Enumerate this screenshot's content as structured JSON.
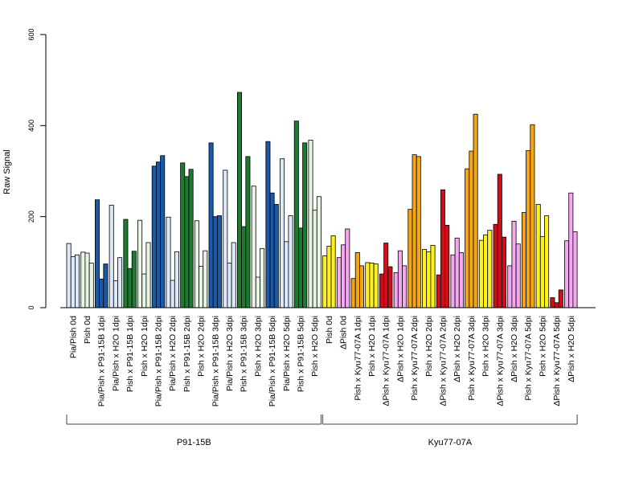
{
  "chart_data": {
    "type": "bar",
    "title": "",
    "xlabel": "",
    "ylabel": "Raw Signal",
    "ylim": [
      0,
      600
    ],
    "yticks": [
      0,
      200,
      400,
      600
    ],
    "categories": [
      "Pia/Pish 0d",
      "Pish 0d",
      "Pia/Pish x P91-15B 1dpi",
      "Pia/Pish x H2O 1dpi",
      "Pish x P91-15B 1dpi",
      "Pish x H2O 1dpi",
      "Pia/Pish x P91-15B 2dpi",
      "Pia/Pish x H2O 2dpi",
      "Pish x P91-15B 2dpi",
      "Pish x H2O 2dpi",
      "Pia/Pish x P91-15B 3dpi",
      "Pia/Pish x H2O 3dpi",
      "Pish x P91-15B 3dpi",
      "Pish x H2O 3dpi",
      "Pia/Pish x P91-15B 5dpi",
      "Pia/Pish x H2O 5dpi",
      "Pish x P91-15B 5dpi",
      "Pish x H2O 5dpi",
      "Pish 0d",
      "ΔPish 0d",
      "Pish x Kyu77-07A 1dpi",
      "Pish x H2O 1dpi",
      "ΔPish x Kyu77-07A 1dpi",
      "ΔPish x H2O 1dpi",
      "Pish x Kyu77-07A 2dpi",
      "Pish x H2O 2dpi",
      "ΔPish x Kyu77-07A 2dpi",
      "ΔPish x H2O 2dpi",
      "Pish x Kyu77-07A 3dpi",
      "Pish x H2O 3dpi",
      "ΔPish x Kyu77-07A 3dpi",
      "ΔPish x H2O 3dpi",
      "Pish x Kyu77-07A 5dpi",
      "Pish x H2O 5dpi",
      "ΔPish x Kyu77-07A 5dpi",
      "ΔPish x H2O 5dpi"
    ],
    "values": [
      [
        141,
        112,
        116
      ],
      [
        122,
        120,
        98
      ],
      [
        237,
        63,
        96
      ],
      [
        225,
        59,
        110
      ],
      [
        194,
        86,
        124
      ],
      [
        192,
        74,
        143
      ],
      [
        311,
        320,
        334
      ],
      [
        199,
        60,
        123
      ],
      [
        318,
        288,
        304
      ],
      [
        191,
        91,
        125
      ],
      [
        362,
        200,
        202
      ],
      [
        302,
        98,
        143
      ],
      [
        473,
        178,
        332
      ],
      [
        267,
        67,
        130
      ],
      [
        365,
        252,
        227
      ],
      [
        327,
        145,
        202
      ],
      [
        410,
        175,
        362
      ],
      [
        368,
        214,
        244
      ],
      [
        114,
        135,
        158
      ],
      [
        110,
        138,
        173
      ],
      [
        64,
        121,
        92
      ],
      [
        99,
        98,
        96
      ],
      [
        74,
        142,
        90
      ],
      [
        77,
        125,
        92
      ],
      [
        216,
        336,
        332
      ],
      [
        128,
        123,
        137
      ],
      [
        72,
        259,
        181
      ],
      [
        116,
        153,
        121
      ],
      [
        305,
        344,
        425
      ],
      [
        148,
        160,
        170
      ],
      [
        183,
        293,
        155
      ],
      [
        92,
        190,
        140
      ],
      [
        209,
        345,
        402
      ],
      [
        227,
        156,
        202
      ],
      [
        22,
        11,
        39
      ],
      [
        147,
        252,
        167
      ]
    ],
    "bar_colors": [
      "#dde8f8",
      "#e9f5e4",
      "#1a58a8",
      "#dde8f8",
      "#1e7a31",
      "#e9f5e4",
      "#1a58a8",
      "#dde8f8",
      "#1e7a31",
      "#e9f5e4",
      "#1a58a8",
      "#dde8f8",
      "#1e7a31",
      "#e9f5e4",
      "#1a58a8",
      "#dde8f8",
      "#1e7a31",
      "#e9f5e4",
      "#fff21c",
      "#f4a8ef",
      "#f5a614",
      "#fff21c",
      "#d10d1a",
      "#f4a8ef",
      "#f5a614",
      "#fff21c",
      "#d10d1a",
      "#f4a8ef",
      "#f5a614",
      "#fff21c",
      "#d10d1a",
      "#f4a8ef",
      "#f5a614",
      "#fff21c",
      "#d10d1a",
      "#f4a8ef"
    ],
    "groups": [
      {
        "label": "P91-15B",
        "first": 0,
        "last": 17
      },
      {
        "label": "Kyu77-07A",
        "first": 18,
        "last": 35
      }
    ],
    "grid": false,
    "legend": "none"
  }
}
